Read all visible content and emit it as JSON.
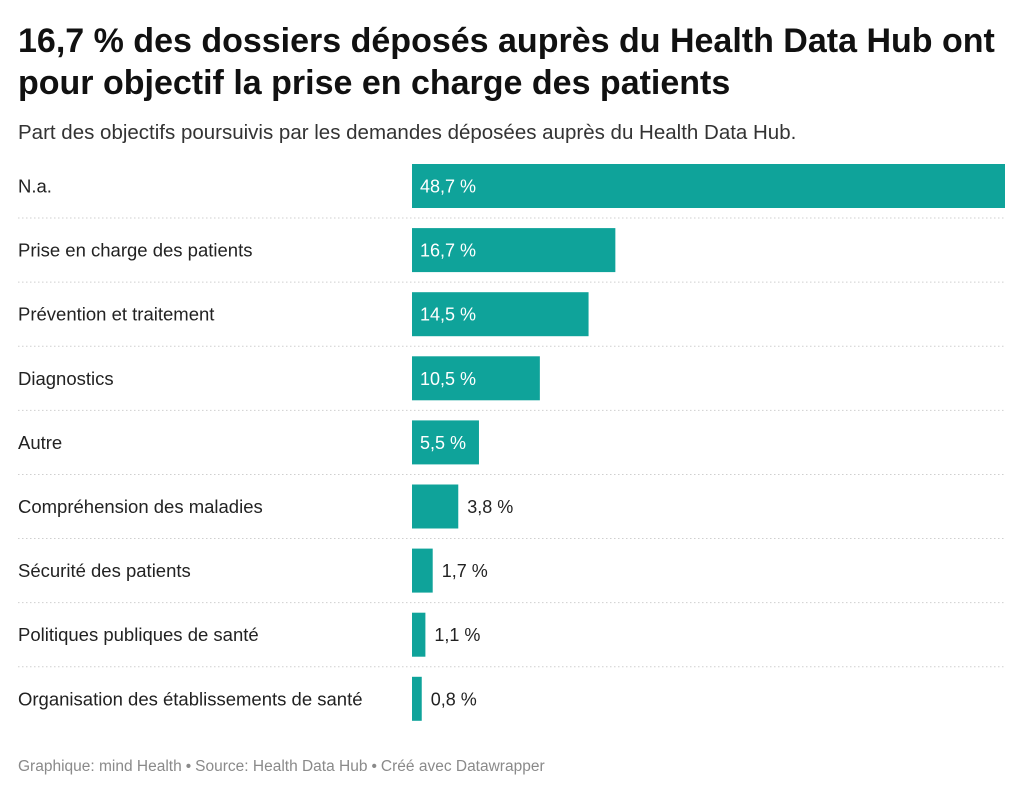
{
  "title": "16,7 % des dossiers déposés auprès du Health Data Hub ont pour objectif la prise en charge des patients",
  "subtitle": "Part des objectifs poursuivis par les demandes déposées auprès du Health Data Hub.",
  "footer": {
    "credit": "Graphique: mind Health",
    "source": "Source: Health Data Hub",
    "tool": "Créé avec Datawrapper"
  },
  "colors": {
    "bar": "#0fa39a",
    "label_inside": "#ffffff",
    "label_outside": "#222222",
    "divider": "#cfcfcf"
  },
  "chart_data": {
    "type": "bar",
    "orientation": "horizontal",
    "title": "16,7 % des dossiers déposés auprès du Health Data Hub ont pour objectif la prise en charge des patients",
    "subtitle": "Part des objectifs poursuivis par les demandes déposées auprès du Health Data Hub.",
    "xlabel": "",
    "ylabel": "",
    "xlim": [
      0,
      48.7
    ],
    "grid": false,
    "legend": "none",
    "unit": "%",
    "categories": [
      "N.a.",
      "Prise en charge des patients",
      "Prévention et traitement",
      "Diagnostics",
      "Autre",
      "Compréhension des maladies",
      "Sécurité des patients",
      "Politiques publiques de santé",
      "Organisation des établissements de santé"
    ],
    "values": [
      48.7,
      16.7,
      14.5,
      10.5,
      5.5,
      3.8,
      1.7,
      1.1,
      0.8
    ],
    "value_labels": [
      "48,7 %",
      "16,7 %",
      "14,5 %",
      "10,5 %",
      "5,5 %",
      "3,8 %",
      "1,7 %",
      "1,1 %",
      "0,8 %"
    ]
  }
}
